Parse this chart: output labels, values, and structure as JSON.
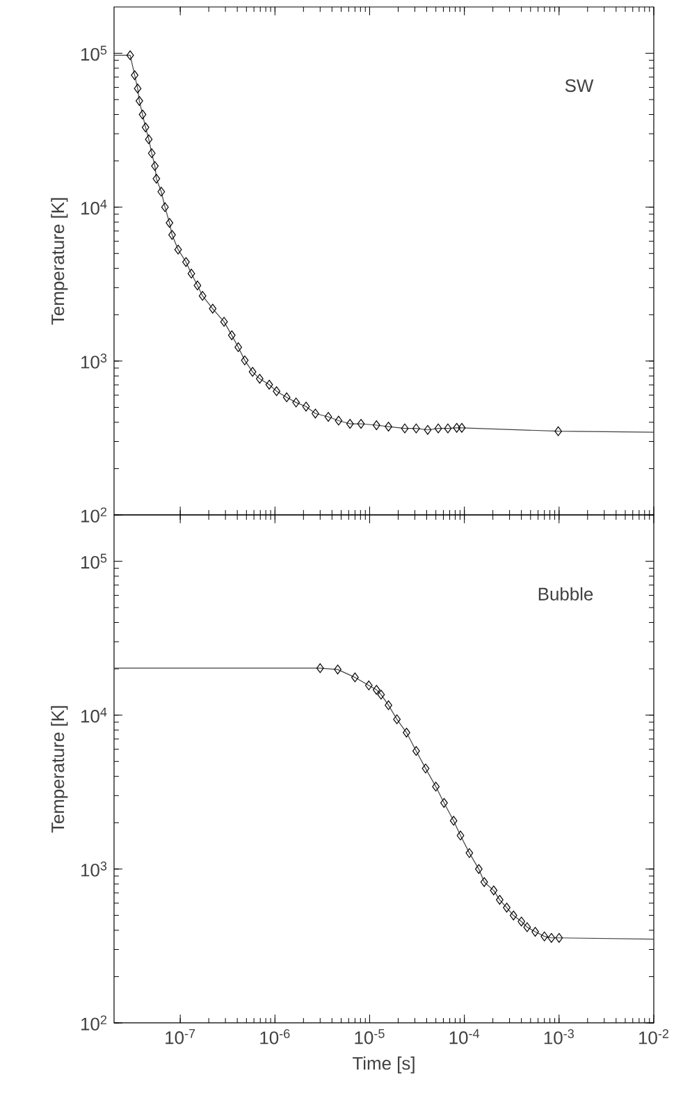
{
  "chart_data": [
    {
      "type": "line",
      "log": "xy",
      "ylabel": "Temperature [K]",
      "annotations": [
        "SW"
      ],
      "tick_labels": "y",
      "xlim": [
        2e-08,
        0.01
      ],
      "ylim": [
        100,
        200000
      ],
      "xticks": [
        {
          "value": 1e-07,
          "label": null
        },
        {
          "value": 1e-06,
          "label": null
        },
        {
          "value": 1e-05,
          "label": null
        },
        {
          "value": 0.0001,
          "label": null
        },
        {
          "value": 0.001,
          "label": null
        },
        {
          "value": 0.01,
          "label": null
        }
      ],
      "yticks": [
        {
          "value": 100,
          "label": "10$^{2}$"
        },
        {
          "value": 1000,
          "label": "10$^{3}$"
        },
        {
          "value": 10000,
          "label": "10$^{4}$"
        },
        {
          "value": 100000,
          "label": "10$^{5}$"
        }
      ],
      "series": [
        {
          "type": "line",
          "marker": "none",
          "color": "#404040",
          "x": [
            2e-08,
            2.96e-08,
            3.3e-08,
            3.55e-08,
            3.7e-08,
            4e-08,
            4.3e-08,
            4.65e-08,
            5e-08,
            5.4e-08,
            5.6e-08,
            6.3e-08,
            6.9e-08,
            7.7e-08,
            8.2e-08,
            9.5e-08,
            1.15e-07,
            1.31e-07,
            1.52e-07,
            1.72e-07,
            2.2e-07,
            2.9e-07,
            3.5e-07,
            4.1e-07,
            4.8e-07,
            5.8e-07,
            6.9e-07,
            8.7e-07,
            1.04e-06,
            1.33e-06,
            1.67e-06,
            2.13e-06,
            2.67e-06,
            3.66e-06,
            4.7e-06,
            6.2e-06,
            8.1e-06,
            1.18e-05,
            1.58e-05,
            2.35e-05,
            3.1e-05,
            4.1e-05,
            5.3e-05,
            6.7e-05,
            8.3e-05,
            9.4e-05,
            0.00098,
            0.01
          ],
          "values": [
            97000,
            97000,
            72000,
            59000,
            49000,
            40000,
            33000,
            27600,
            22400,
            18500,
            15300,
            12600,
            10000,
            7900,
            6600,
            5300,
            4400,
            3700,
            3100,
            2650,
            2190,
            1800,
            1470,
            1230,
            1010,
            851,
            767,
            702,
            637,
            581,
            538,
            506,
            456,
            434,
            410,
            391,
            391,
            383,
            375,
            365,
            365,
            357,
            365,
            365,
            368,
            368,
            350,
            345
          ]
        },
        {
          "type": "scatter",
          "marker": "diamond",
          "color": "#000000",
          "x": [
            2.96e-08,
            3.3e-08,
            3.55e-08,
            3.7e-08,
            4e-08,
            4.3e-08,
            4.65e-08,
            5e-08,
            5.4e-08,
            5.6e-08,
            6.3e-08,
            6.9e-08,
            7.7e-08,
            8.2e-08,
            9.5e-08,
            1.15e-07,
            1.31e-07,
            1.52e-07,
            1.72e-07,
            2.2e-07,
            2.9e-07,
            3.5e-07,
            4.1e-07,
            4.8e-07,
            5.8e-07,
            6.9e-07,
            8.7e-07,
            1.04e-06,
            1.33e-06,
            1.67e-06,
            2.13e-06,
            2.67e-06,
            3.66e-06,
            4.7e-06,
            6.2e-06,
            8.1e-06,
            1.18e-05,
            1.58e-05,
            2.35e-05,
            3.1e-05,
            4.1e-05,
            5.3e-05,
            6.7e-05,
            8.3e-05,
            9.4e-05,
            0.00098
          ],
          "values": [
            97000,
            72000,
            59000,
            49000,
            40000,
            33000,
            27600,
            22400,
            18500,
            15300,
            12600,
            10000,
            7900,
            6600,
            5300,
            4400,
            3700,
            3100,
            2650,
            2190,
            1800,
            1470,
            1230,
            1010,
            851,
            767,
            702,
            637,
            581,
            538,
            506,
            456,
            434,
            410,
            391,
            391,
            383,
            375,
            365,
            365,
            357,
            365,
            365,
            368,
            368,
            350
          ]
        }
      ]
    },
    {
      "type": "line",
      "log": "xy",
      "xlabel": "Time [s]",
      "ylabel": "Temperature [K]",
      "annotations": [
        "Bubble"
      ],
      "xlim": [
        2e-08,
        0.01
      ],
      "ylim": [
        100,
        200000
      ],
      "xticks": [
        {
          "value": 1e-07,
          "label": "10$^{-7}$"
        },
        {
          "value": 1e-06,
          "label": "10$^{-6}$"
        },
        {
          "value": 1e-05,
          "label": "10$^{-5}$"
        },
        {
          "value": 0.0001,
          "label": "10$^{-4}$"
        },
        {
          "value": 0.001,
          "label": "10$^{-3}$"
        },
        {
          "value": 0.01,
          "label": "10$^{-2}$"
        }
      ],
      "yticks": [
        {
          "value": 100,
          "label": "10$^{2}$"
        },
        {
          "value": 1000,
          "label": "10$^{3}$"
        },
        {
          "value": 10000,
          "label": "10$^{4}$"
        },
        {
          "value": 100000,
          "label": "10$^{5}$"
        }
      ],
      "series": [
        {
          "type": "line",
          "marker": "none",
          "color": "#404040",
          "x": [
            2e-08,
            3e-06,
            4.6e-06,
            7e-06,
            9.8e-06,
            1.18e-05,
            1.32e-05,
            1.58e-05,
            1.94e-05,
            2.45e-05,
            3.1e-05,
            3.9e-05,
            5e-05,
            6.1e-05,
            7.7e-05,
            9.1e-05,
            0.000113,
            0.000142,
            0.000162,
            0.000204,
            0.000236,
            0.00028,
            0.00033,
            0.0004,
            0.00046,
            0.00056,
            0.0007,
            0.00083,
            0.001,
            0.01
          ],
          "values": [
            20200,
            20200,
            19800,
            17600,
            15600,
            14600,
            13600,
            11600,
            9400,
            7700,
            5850,
            4500,
            3430,
            2690,
            2060,
            1650,
            1270,
            1000,
            823,
            726,
            631,
            561,
            499,
            456,
            419,
            391,
            365,
            357,
            357,
            350
          ]
        },
        {
          "type": "scatter",
          "marker": "diamond",
          "color": "#000000",
          "x": [
            3e-06,
            4.6e-06,
            7e-06,
            9.8e-06,
            1.18e-05,
            1.32e-05,
            1.58e-05,
            1.94e-05,
            2.45e-05,
            3.1e-05,
            3.9e-05,
            5e-05,
            6.1e-05,
            7.7e-05,
            9.1e-05,
            0.000113,
            0.000142,
            0.000162,
            0.000204,
            0.000236,
            0.00028,
            0.00033,
            0.0004,
            0.00046,
            0.00056,
            0.0007,
            0.00083,
            0.001
          ],
          "values": [
            20200,
            19800,
            17600,
            15600,
            14600,
            13600,
            11600,
            9400,
            7700,
            5850,
            4500,
            3430,
            2690,
            2060,
            1650,
            1270,
            1000,
            823,
            726,
            631,
            561,
            499,
            456,
            419,
            391,
            365,
            357,
            357
          ]
        }
      ]
    }
  ]
}
